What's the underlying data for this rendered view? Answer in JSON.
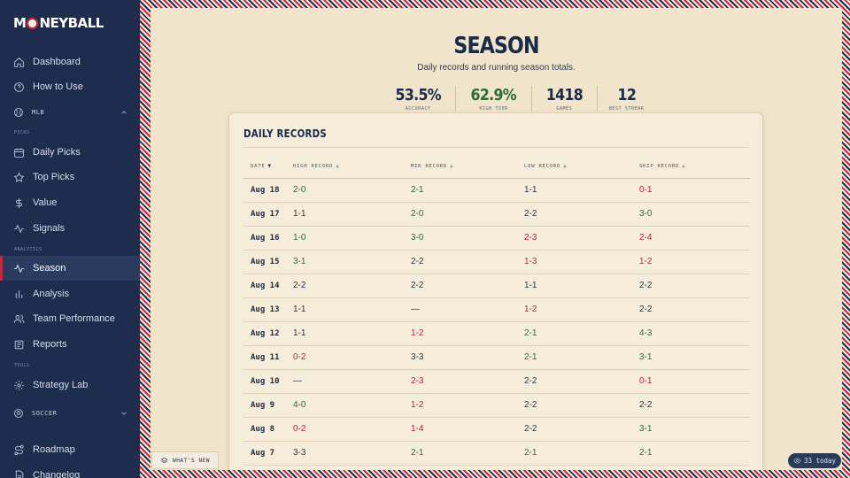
{
  "brand": {
    "logo_left": "M",
    "logo_right": "NEYBALL"
  },
  "sidebar": {
    "top_items": [
      {
        "label": "Dashboard",
        "icon": "home-icon"
      },
      {
        "label": "How to Use",
        "icon": "help-circle-icon"
      }
    ],
    "mlb_group": "MLB",
    "picks_label": "PICKS",
    "picks_items": [
      {
        "label": "Daily Picks",
        "icon": "calendar-icon"
      },
      {
        "label": "Top Picks",
        "icon": "star-icon"
      },
      {
        "label": "Value",
        "icon": "dollar-icon"
      },
      {
        "label": "Signals",
        "icon": "activity-icon"
      }
    ],
    "analytics_label": "ANALYTICS",
    "analytics_items": [
      {
        "label": "Season",
        "icon": "pulse-icon",
        "active": true
      },
      {
        "label": "Analysis",
        "icon": "bar-chart-icon"
      },
      {
        "label": "Team Performance",
        "icon": "users-icon"
      },
      {
        "label": "Reports",
        "icon": "newspaper-icon"
      }
    ],
    "tools_label": "TOOLS",
    "tools_items": [
      {
        "label": "Strategy Lab",
        "icon": "gear-icon"
      }
    ],
    "soccer_group": "SOCCER",
    "bottom_items": [
      {
        "label": "Roadmap",
        "icon": "route-icon"
      },
      {
        "label": "Changelog",
        "icon": "file-icon"
      }
    ]
  },
  "header": {
    "title": "SEASON",
    "subtitle": "Daily records and running season totals."
  },
  "stats": [
    {
      "value": "53.5%",
      "label": "ACCURACY",
      "color": "#1a2a4a"
    },
    {
      "value": "62.9%",
      "label": "HIGH TIER",
      "color": "#2f6b36"
    },
    {
      "value": "1418",
      "label": "GAMES",
      "color": "#1a2a4a"
    },
    {
      "value": "12",
      "label": "BEST STREAK",
      "color": "#1a2a4a"
    }
  ],
  "daily_records": {
    "title": "DAILY RECORDS",
    "columns": [
      "DATE",
      "HIGH RECORD",
      "MID RECORD",
      "LOW RECORD",
      "SKIP RECORD"
    ],
    "rows": [
      [
        "Aug 18",
        "2-0",
        "2-1",
        "1-1",
        "0-1"
      ],
      [
        "Aug 17",
        "1-1",
        "2-0",
        "2-2",
        "3-0"
      ],
      [
        "Aug 16",
        "1-0",
        "3-0",
        "2-3",
        "2-4"
      ],
      [
        "Aug 15",
        "3-1",
        "2-2",
        "1-3",
        "1-2"
      ],
      [
        "Aug 14",
        "2-2",
        "2-2",
        "1-1",
        "2-2"
      ],
      [
        "Aug 13",
        "1-1",
        "—",
        "1-2",
        "2-2"
      ],
      [
        "Aug 12",
        "1-1",
        "1-2",
        "2-1",
        "4-3"
      ],
      [
        "Aug 11",
        "0-2",
        "3-3",
        "2-1",
        "3-1"
      ],
      [
        "Aug 10",
        "—",
        "2-3",
        "2-2",
        "0-1"
      ],
      [
        "Aug 9",
        "4-0",
        "1-2",
        "2-2",
        "2-2"
      ],
      [
        "Aug 8",
        "0-2",
        "1-4",
        "2-2",
        "3-1"
      ],
      [
        "Aug 7",
        "3-3",
        "2-1",
        "2-1",
        "2-1"
      ]
    ]
  },
  "whats_new": "WHAT'S NEW",
  "today_badge": "33 today",
  "colors": {
    "win": "#2f6b36",
    "loss": "#b3263a",
    "navy": "#1e2d4d",
    "accent_red": "#c8283d",
    "cream": "#f0e4cb"
  }
}
